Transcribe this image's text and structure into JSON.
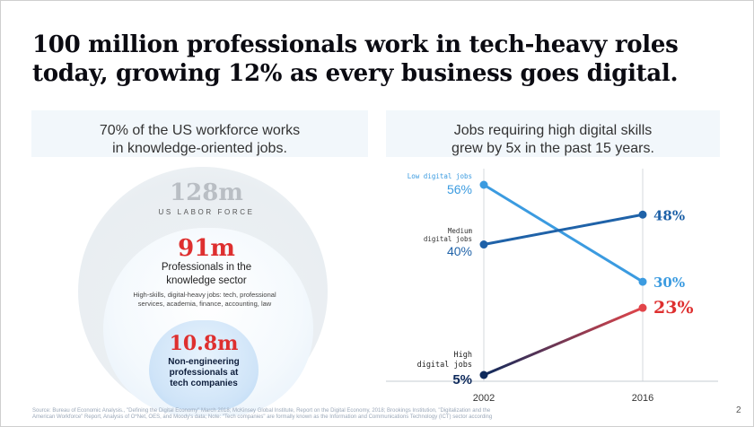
{
  "title": "100 million professionals work in tech-heavy roles today, growing 12% as every business goes digital.",
  "left_panel": {
    "heading_line1": "70% of the US workforce works",
    "heading_line2": "in knowledge-oriented jobs.",
    "outer": {
      "value": "128m",
      "label": "US LABOR FORCE"
    },
    "middle": {
      "value": "91m",
      "label_line1": "Professionals in the",
      "label_line2": "knowledge sector",
      "desc_line1": "High-skills, digital-heavy jobs: tech, professional",
      "desc_line2": "services, academia, finance, accounting, law"
    },
    "inner": {
      "value": "10.8m",
      "label_line1": "Non-engineering",
      "label_line2": "professionals at",
      "label_line3": "tech companies"
    }
  },
  "right_panel": {
    "heading_line1": "Jobs requiring high digital skills",
    "heading_line2": "grew by 5x in the past 15 years."
  },
  "colors": {
    "low": "#3b9be0",
    "medium": "#1f62a8",
    "high_start": "#0e2a5c",
    "high_end": "#e2454a",
    "accent_red": "#de2f2f"
  },
  "chart_data": {
    "type": "line",
    "title": "Jobs requiring high digital skills grew by 5x in the past 15 years.",
    "x": [
      "2002",
      "2016"
    ],
    "xlabel": "",
    "ylabel": "",
    "ylim": [
      0,
      60
    ],
    "series": [
      {
        "key": "low",
        "name_line1": "Low digital jobs",
        "name_line2": "",
        "values": [
          56,
          30
        ],
        "start_label": "56%",
        "end_label": "30%"
      },
      {
        "key": "medium",
        "name_line1": "Medium",
        "name_line2": "digital jobs",
        "values": [
          40,
          48
        ],
        "start_label": "40%",
        "end_label": "48%"
      },
      {
        "key": "high",
        "name_line1": "High",
        "name_line2": "digital jobs",
        "values": [
          5,
          23
        ],
        "start_label": "5%",
        "end_label": "23%"
      }
    ]
  },
  "footer": {
    "source_line1": "Source: Bureau of Economic Analysis., \"Defining the Digital Economy\" March 2018; McKinsey Global Institute, Report on the Digital Economy, 2018; Brookings Institution, \"Digitalization and the",
    "source_line2": "American Workforce\" Report, Analysis of O*Net, OES, and Moody's data; Note: \"Tech companies\" are formally known as the Information and Communications Technology (ICT) sector according",
    "page_number": "2"
  }
}
